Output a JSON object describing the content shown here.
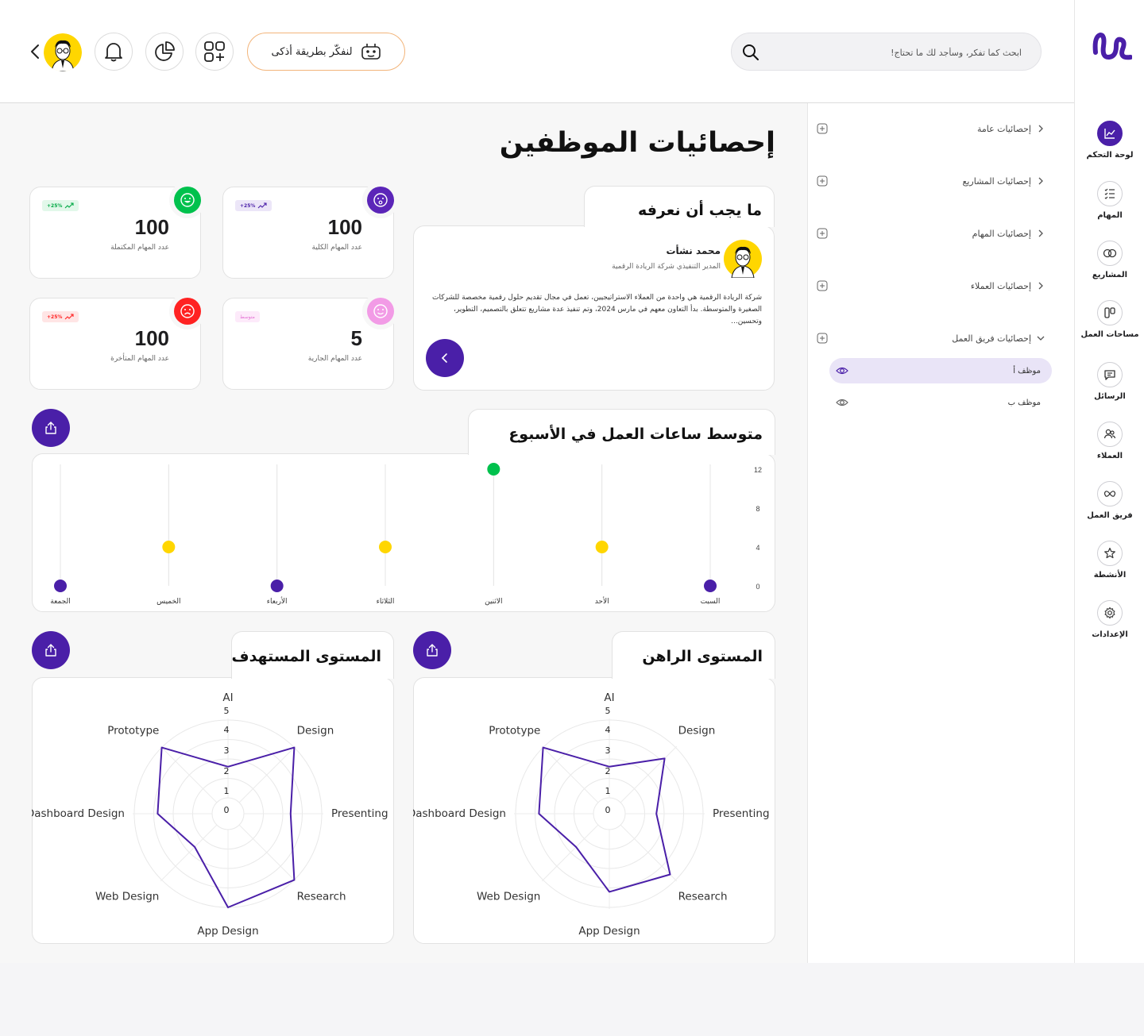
{
  "app": {
    "logo": "brand-logo"
  },
  "colors": {
    "primary": "#4a1fa8",
    "green": "#00c14d",
    "yellow": "#ffd600",
    "red": "#ff2222",
    "pink": "#f29be6",
    "purple": "#5b25b8"
  },
  "rail": {
    "items": [
      {
        "label": "لوحة التحكم",
        "icon": "chart-line-icon"
      },
      {
        "label": "المهام",
        "icon": "task-list-icon"
      },
      {
        "label": "المشاريع",
        "icon": "projects-icon"
      },
      {
        "label": "مساحات العمل",
        "icon": "workspace-icon"
      },
      {
        "label": "الرسائل",
        "icon": "message-icon"
      },
      {
        "label": "العملاء",
        "icon": "clients-icon"
      },
      {
        "label": "فريق العمل",
        "icon": "team-icon"
      },
      {
        "label": "الأنشطة",
        "icon": "activity-star-icon"
      },
      {
        "label": "الإعدادات",
        "icon": "gear-icon"
      }
    ]
  },
  "header": {
    "search_placeholder": "ابحث كما تفكر، وسأجد لك ما تحتاج!",
    "ai_button": "لنفكّر بطريقة أذكى"
  },
  "nav": {
    "sections": [
      {
        "label": "إحصائيات عامة"
      },
      {
        "label": "إحصائيات المشاريع"
      },
      {
        "label": "إحصائيات المهام"
      },
      {
        "label": "إحصائيات العملاء"
      },
      {
        "label": "إحصائيات فريق العمل"
      }
    ],
    "employees": [
      {
        "label": "موظف أ"
      },
      {
        "label": "موظف ب"
      }
    ]
  },
  "main": {
    "title": "إحصائيات الموظفين",
    "about": {
      "title": "ما يجب أن نعرفه",
      "name": "محمد نشأت",
      "role": "المدير التنفيذي شركة الريادة الرقمية",
      "description": "شركة الريادة الرقمية هي واحدة من العملاء الاستراتيجيين، تعمل في مجال تقديم حلول رقمية مخصصة للشركات الصغيرة والمتوسطة. بدأ التعاون معهم في مارس 2024، وتم تنفيذ عدة مشاريع تتعلق بالتصميم، التطوير، وتحسين..."
    },
    "stats": [
      {
        "value": "100",
        "label": "عدد المهام الكلية",
        "badge": "+25%"
      },
      {
        "value": "100",
        "label": "عدد المهام المكتملة",
        "badge": "+25%"
      },
      {
        "value": "5",
        "label": "عدد المهام الجارية",
        "badge": "متوسط"
      },
      {
        "value": "100",
        "label": "عدد المهام المتأخرة",
        "badge": "+25%"
      }
    ],
    "weekly_title": "متوسط ساعات العمل في الأسبوع",
    "radar_current_title": "المستوى الراهن",
    "radar_target_title": "المستوى المستهدف"
  },
  "chart_data": [
    {
      "type": "scatter",
      "title": "متوسط ساعات العمل في الأسبوع",
      "categories": [
        "السبت",
        "الأحد",
        "الاثنين",
        "الثلاثاء",
        "الأربعاء",
        "الخميس",
        "الجمعة"
      ],
      "values": [
        0,
        4,
        12,
        4,
        0,
        4,
        0
      ],
      "point_colors": [
        "#4a1fa8",
        "#ffd600",
        "#00c14d",
        "#ffd600",
        "#4a1fa8",
        "#ffd600",
        "#4a1fa8"
      ],
      "yticks": [
        "0",
        "4",
        "8",
        "12"
      ],
      "ylim": [
        0,
        12
      ],
      "grid": true
    },
    {
      "type": "radar",
      "title": "المستوى الراهن",
      "axes": [
        "AI",
        "Design",
        "Presenting",
        "Research",
        "App Design",
        "Web Design",
        "Dashboard Design",
        "Prototype"
      ],
      "values": [
        2,
        4,
        2,
        4.5,
        4,
        2,
        3.5,
        5
      ],
      "rticks": [
        "0",
        "1",
        "2",
        "3",
        "4",
        "5"
      ],
      "rlim": [
        0,
        5
      ]
    },
    {
      "type": "radar",
      "title": "المستوى المستهدف",
      "axes": [
        "AI",
        "Design",
        "Presenting",
        "Research",
        "App Design",
        "Web Design",
        "Dashboard Design",
        "Prototype"
      ],
      "values": [
        2,
        5,
        3,
        5,
        5,
        2,
        3.5,
        5
      ],
      "rticks": [
        "0",
        "1",
        "2",
        "3",
        "4",
        "5"
      ],
      "rlim": [
        0,
        5
      ]
    }
  ]
}
